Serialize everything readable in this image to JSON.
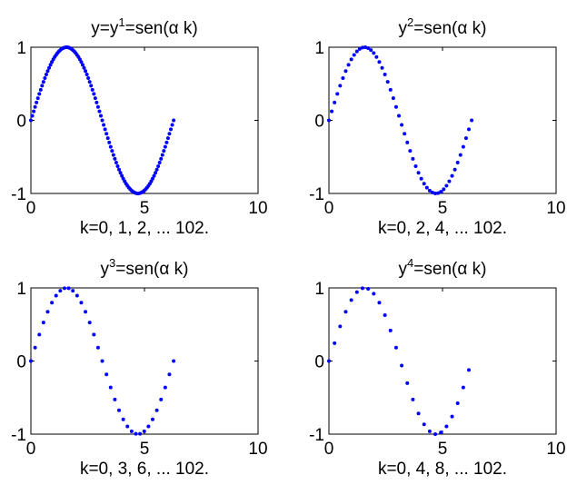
{
  "chart_data": [
    {
      "type": "scatter",
      "title": "y=y1=sen(α k)",
      "title_parts": [
        {
          "text": "y=y",
          "sup": false
        },
        {
          "text": "1",
          "sup": true
        },
        {
          "text": "=sen(α k)",
          "sup": false
        }
      ],
      "xlabel": "k=0, 1, 2, ... 102.",
      "ylabel": "",
      "xlim": [
        0,
        10
      ],
      "ylim": [
        -1,
        1
      ],
      "xticks": [
        0,
        5,
        10
      ],
      "yticks": [
        -1,
        0,
        1
      ],
      "marker_color": "#0000ff",
      "series": [
        {
          "step": 1,
          "count": 103,
          "x_max": 6.2832,
          "function": "sin"
        }
      ]
    },
    {
      "type": "scatter",
      "title": "y2=sen(α k)",
      "title_parts": [
        {
          "text": "y",
          "sup": false
        },
        {
          "text": "2",
          "sup": true
        },
        {
          "text": "=sen(α k)",
          "sup": false
        }
      ],
      "xlabel": "k=0, 2, 4, ... 102.",
      "ylabel": "",
      "xlim": [
        0,
        10
      ],
      "ylim": [
        -1,
        1
      ],
      "xticks": [
        0,
        5,
        10
      ],
      "yticks": [
        -1,
        0,
        1
      ],
      "marker_color": "#0000ff",
      "series": [
        {
          "step": 2,
          "count": 103,
          "x_max": 6.2832,
          "function": "sin"
        }
      ]
    },
    {
      "type": "scatter",
      "title": "y3=sen(α k)",
      "title_parts": [
        {
          "text": "y",
          "sup": false
        },
        {
          "text": "3",
          "sup": true
        },
        {
          "text": "=sen(α k)",
          "sup": false
        }
      ],
      "xlabel": "k=0, 3, 6, ... 102.",
      "ylabel": "",
      "xlim": [
        0,
        10
      ],
      "ylim": [
        -1,
        1
      ],
      "xticks": [
        0,
        5,
        10
      ],
      "yticks": [
        -1,
        0,
        1
      ],
      "marker_color": "#0000ff",
      "series": [
        {
          "step": 3,
          "count": 103,
          "x_max": 6.2832,
          "function": "sin"
        }
      ]
    },
    {
      "type": "scatter",
      "title": "y4=sen(α k)",
      "title_parts": [
        {
          "text": "y",
          "sup": false
        },
        {
          "text": "4",
          "sup": true
        },
        {
          "text": "=sen(α k)",
          "sup": false
        }
      ],
      "xlabel": "k=0, 4, 8, ... 102.",
      "ylabel": "",
      "xlim": [
        0,
        10
      ],
      "ylim": [
        -1,
        1
      ],
      "xticks": [
        0,
        5,
        10
      ],
      "yticks": [
        -1,
        0,
        1
      ],
      "marker_color": "#0000ff",
      "series": [
        {
          "step": 4,
          "count": 103,
          "x_max": 6.2832,
          "function": "sin"
        }
      ]
    }
  ]
}
